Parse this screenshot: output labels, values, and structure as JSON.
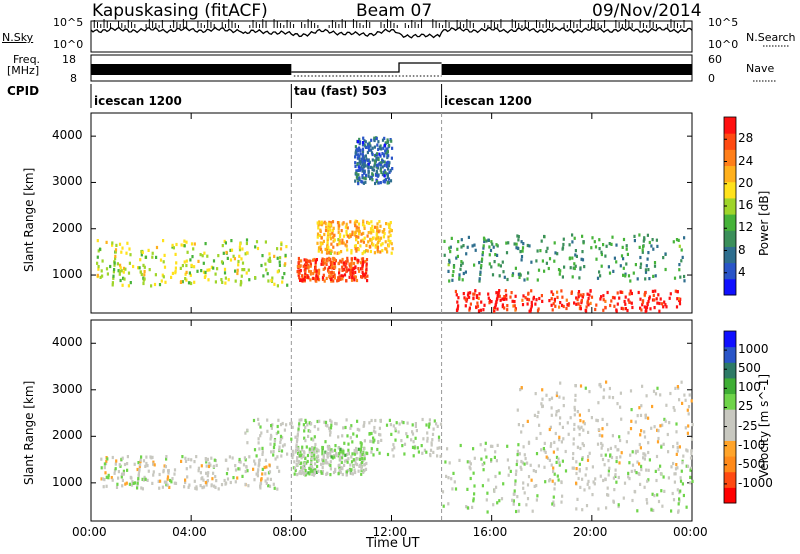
{
  "header": {
    "station": "Kapuskasing (fitACF)",
    "beam": "Beam 07",
    "date": "09/Nov/2014"
  },
  "panels": {
    "nsky_label": "N.Sky",
    "nsearch_label": "N.Search",
    "freq_label_1": "Freq.",
    "freq_label_2": "[MHz]",
    "nave_label": "Nave",
    "cpid_label": "CPID",
    "left_ticks_top": [
      "10^5",
      "10^0"
    ],
    "right_ticks_top": [
      "10^5",
      "10^0"
    ],
    "left_ticks_freq": [
      "18",
      "8"
    ],
    "right_ticks_nave": [
      "60",
      "0"
    ],
    "cpid_segments": [
      {
        "label": "icescan 1200",
        "start": 0.0,
        "end": 8.0
      },
      {
        "label": "tau (fast) 503",
        "start": 8.0,
        "end": 14.0
      },
      {
        "label": "icescan 1200",
        "start": 14.0,
        "end": 24.0
      }
    ]
  },
  "chart_data": [
    {
      "type": "heatmap",
      "title": "",
      "xlabel": "Time UT",
      "ylabel": "Slant Range [km]",
      "x_ticks": [
        "00:00",
        "04:00",
        "08:00",
        "12:00",
        "16:00",
        "20:00",
        "00:00"
      ],
      "xlim": [
        0,
        24
      ],
      "y_ticks": [
        "1000",
        "2000",
        "3000",
        "4000"
      ],
      "ylim": [
        180,
        4500
      ],
      "colorbar": {
        "label": "Power [dB]",
        "ticks": [
          "28",
          "24",
          "20",
          "16",
          "12",
          "8",
          "4"
        ],
        "range": [
          0,
          30
        ],
        "colors": [
          "#1010ff",
          "#2a55c8",
          "#2e6e8e",
          "#3b8f5a",
          "#46b339",
          "#9fd52a",
          "#ffe21c",
          "#ffb01c",
          "#ff7f1a",
          "#ff4a12",
          "#ff1010"
        ]
      },
      "regions": [
        {
          "t0": 0.2,
          "t1": 7.8,
          "r0": 800,
          "r1": 1800,
          "value": 16
        },
        {
          "t0": 8.2,
          "t1": 11.0,
          "r0": 900,
          "r1": 1400,
          "value": 26
        },
        {
          "t0": 9.0,
          "t1": 12.0,
          "r0": 1500,
          "r1": 2200,
          "value": 20
        },
        {
          "t0": 14.0,
          "t1": 23.8,
          "r0": 900,
          "r1": 1900,
          "value": 10
        },
        {
          "t0": 14.5,
          "t1": 23.5,
          "r0": 250,
          "r1": 700,
          "value": 28
        },
        {
          "t0": 10.5,
          "t1": 12.0,
          "r0": 3000,
          "r1": 4000,
          "value": 6
        }
      ]
    },
    {
      "type": "heatmap",
      "title": "",
      "xlabel": "Time UT",
      "ylabel": "Slant Range [km]",
      "x_ticks": [
        "00:00",
        "04:00",
        "08:00",
        "12:00",
        "16:00",
        "20:00",
        "00:00"
      ],
      "xlim": [
        0,
        24
      ],
      "y_ticks": [
        "1000",
        "2000",
        "3000",
        "4000"
      ],
      "ylim": [
        180,
        4500
      ],
      "colorbar": {
        "label": "Velocity [m s^-1]",
        "ticks": [
          "1000",
          "500",
          "100",
          "25",
          "-25",
          "-100",
          "-500",
          "-1000"
        ],
        "range": [
          -1000,
          1000
        ],
        "colors": [
          "#ff0000",
          "#ff4a12",
          "#ff8a1a",
          "#ffa42a",
          "#c8c8c0",
          "#c8c8c0",
          "#6fd44a",
          "#3fae35",
          "#2d7a66",
          "#2a55c8",
          "#1010ff"
        ]
      },
      "regions": [
        {
          "t0": 0.2,
          "t1": 7.5,
          "r0": 900,
          "r1": 1600,
          "value": -80
        },
        {
          "t0": 8.0,
          "t1": 11.0,
          "r0": 1200,
          "r1": 1800,
          "value": 60
        },
        {
          "t0": 6.0,
          "t1": 14.0,
          "r0": 1600,
          "r1": 2400,
          "value": 0
        },
        {
          "t0": 14.0,
          "t1": 23.8,
          "r0": 400,
          "r1": 1900,
          "value": 0
        },
        {
          "t0": 17.0,
          "t1": 24.0,
          "r0": 1000,
          "r1": 3200,
          "value": -120
        }
      ]
    }
  ]
}
